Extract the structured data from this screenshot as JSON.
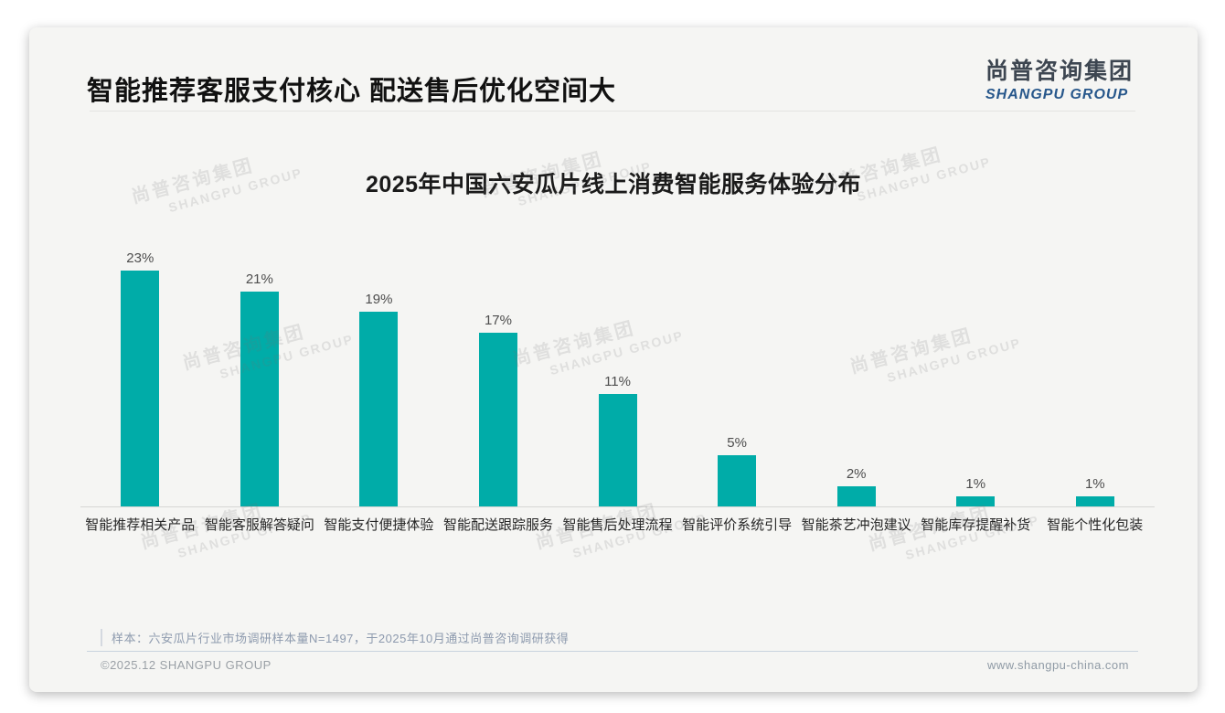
{
  "page": {
    "title": "智能推荐客服支付核心 配送售后优化空间大",
    "logo": {
      "cn": "尚普咨询集团",
      "en": "SHANGPU GROUP"
    },
    "watermark": {
      "cn": "尚普咨询集团",
      "en": "SHANGPU GROUP"
    },
    "note": "样本：六安瓜片行业市场调研样本量N=1497，于2025年10月通过尚普咨询调研获得",
    "footer": {
      "copyright": "©2025.12 SHANGPU GROUP",
      "website": "www.shangpu-china.com"
    }
  },
  "colors": {
    "bar": "#00ACA8",
    "logo_blue": "#27578b",
    "card_bg": "#f5f5f3",
    "note_text": "#8d9aae"
  },
  "chart_data": {
    "type": "bar",
    "title": "2025年中国六安瓜片线上消费智能服务体验分布",
    "categories": [
      "智能推荐相关产品",
      "智能客服解答疑问",
      "智能支付便捷体验",
      "智能配送跟踪服务",
      "智能售后处理流程",
      "智能评价系统引导",
      "智能茶艺冲泡建议",
      "智能库存提醒补货",
      "智能个性化包装"
    ],
    "values": [
      23,
      21,
      19,
      17,
      11,
      5,
      2,
      1,
      1
    ],
    "data_labels": [
      "23%",
      "21%",
      "19%",
      "17%",
      "11%",
      "5%",
      "2%",
      "1%",
      "1%"
    ],
    "unit": "%",
    "bar_color": "#00ACA8",
    "xlabel": "",
    "ylabel": "",
    "ylim": [
      0,
      25
    ],
    "grid": false,
    "legend": "none"
  }
}
